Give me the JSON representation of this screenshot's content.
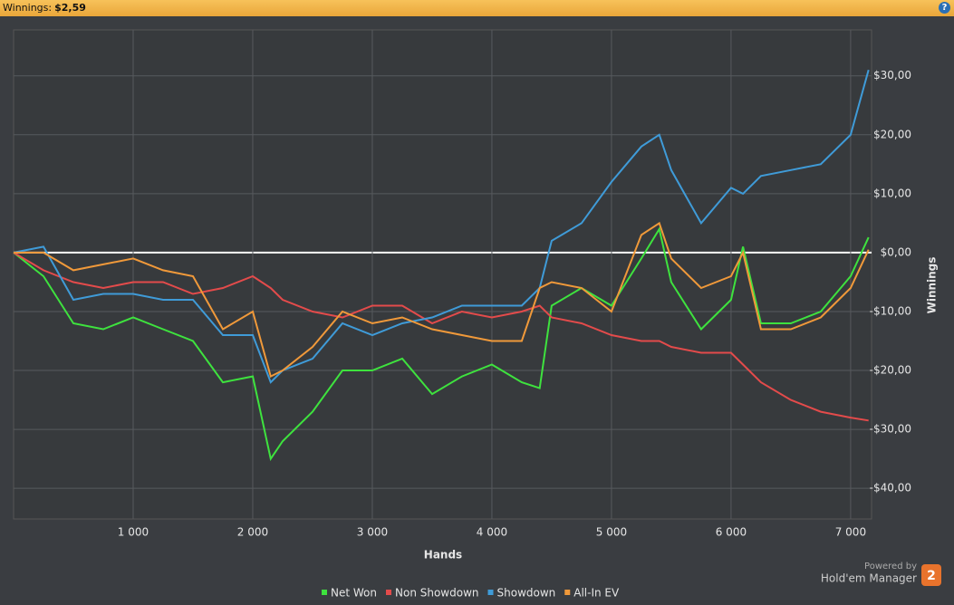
{
  "header": {
    "label": "Winnings:",
    "value": "$2,59"
  },
  "branding": {
    "powered": "Powered by",
    "product": "Hold'em Manager",
    "version": "2"
  },
  "chart_data": {
    "type": "line",
    "x_label": "Hands",
    "y_label": "Winnings",
    "x": [
      0,
      250,
      500,
      750,
      1000,
      1250,
      1500,
      1750,
      2000,
      2150,
      2250,
      2500,
      2750,
      3000,
      3250,
      3500,
      3750,
      4000,
      4250,
      4400,
      4500,
      4750,
      5000,
      5250,
      5400,
      5500,
      5750,
      6000,
      6100,
      6250,
      6500,
      6750,
      7000,
      7150
    ],
    "series": [
      {
        "name": "Net Won",
        "color": "#3ee23e",
        "values": [
          0,
          -4,
          -12,
          -13,
          -11,
          -13,
          -15,
          -22,
          -21,
          -35,
          -32,
          -27,
          -20,
          -20,
          -18,
          -24,
          -21,
          -19,
          -22,
          -23,
          -9,
          -6,
          -9,
          -1,
          4,
          -5,
          -13,
          -8,
          1,
          -12,
          -12,
          -10,
          -4,
          2.59
        ]
      },
      {
        "name": "Non Showdown",
        "color": "#e34b4b",
        "values": [
          0,
          -3,
          -5,
          -6,
          -5,
          -5,
          -7,
          -6,
          -4,
          -6,
          -8,
          -10,
          -11,
          -9,
          -9,
          -12,
          -10,
          -11,
          -10,
          -9,
          -11,
          -12,
          -14,
          -15,
          -15,
          -16,
          -17,
          -17,
          -19,
          -22,
          -25,
          -27,
          -28,
          -28.5
        ]
      },
      {
        "name": "Showdown",
        "color": "#3f9bd8",
        "values": [
          0,
          1,
          -8,
          -7,
          -7,
          -8,
          -8,
          -14,
          -14,
          -22,
          -20,
          -18,
          -12,
          -14,
          -12,
          -11,
          -9,
          -9,
          -9,
          -6,
          2,
          5,
          12,
          18,
          20,
          14,
          5,
          11,
          10,
          13,
          14,
          15,
          20,
          31
        ]
      },
      {
        "name": "All-In EV",
        "color": "#f0993a",
        "values": [
          0,
          0,
          -3,
          -2,
          -1,
          -3,
          -4,
          -13,
          -10,
          -21,
          -20,
          -16,
          -10,
          -12,
          -11,
          -13,
          -14,
          -15,
          -15,
          -6,
          -5,
          -6,
          -10,
          3,
          5,
          -1,
          -6,
          -4,
          0,
          -13,
          -13,
          -11,
          -6,
          0.5
        ]
      }
    ],
    "xlim": [
      0,
      7175
    ],
    "ylim": [
      -45.2,
      37.8
    ],
    "xticks": [
      {
        "value": 1000,
        "label": "1 000"
      },
      {
        "value": 2000,
        "label": "2 000"
      },
      {
        "value": 3000,
        "label": "3 000"
      },
      {
        "value": 4000,
        "label": "4 000"
      },
      {
        "value": 5000,
        "label": "5 000"
      },
      {
        "value": 6000,
        "label": "6 000"
      },
      {
        "value": 7000,
        "label": "7 000"
      }
    ],
    "yticks": [
      {
        "value": -40,
        "label": "-$40,00"
      },
      {
        "value": -30,
        "label": "-$30,00"
      },
      {
        "value": -20,
        "label": "-$20,00"
      },
      {
        "value": -10,
        "label": "-$10,00"
      },
      {
        "value": 0,
        "label": "$0,00"
      },
      {
        "value": 10,
        "label": "$10,00"
      },
      {
        "value": 20,
        "label": "$20,00"
      },
      {
        "value": 30,
        "label": "$30,00"
      }
    ],
    "grid": true,
    "legend": "bottom"
  }
}
